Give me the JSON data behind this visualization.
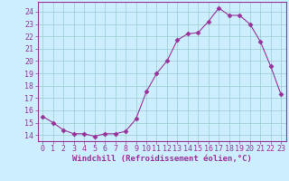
{
  "x": [
    0,
    1,
    2,
    3,
    4,
    5,
    6,
    7,
    8,
    9,
    10,
    11,
    12,
    13,
    14,
    15,
    16,
    17,
    18,
    19,
    20,
    21,
    22,
    23
  ],
  "y": [
    15.5,
    15.0,
    14.4,
    14.1,
    14.1,
    13.9,
    14.1,
    14.1,
    14.3,
    15.3,
    17.5,
    19.0,
    20.0,
    21.7,
    22.2,
    22.3,
    23.2,
    24.3,
    23.7,
    23.7,
    23.0,
    21.6,
    19.6,
    17.3
  ],
  "line_color": "#993399",
  "marker": "D",
  "marker_size": 2.5,
  "bg_color": "#cceeff",
  "grid_color": "#99cccc",
  "axis_color": "#993399",
  "spine_color": "#993399",
  "xlabel": "Windchill (Refroidissement éolien,°C)",
  "xlim": [
    -0.5,
    23.5
  ],
  "ylim": [
    13.5,
    24.8
  ],
  "yticks": [
    14,
    15,
    16,
    17,
    18,
    19,
    20,
    21,
    22,
    23,
    24
  ],
  "xticks": [
    0,
    1,
    2,
    3,
    4,
    5,
    6,
    7,
    8,
    9,
    10,
    11,
    12,
    13,
    14,
    15,
    16,
    17,
    18,
    19,
    20,
    21,
    22,
    23
  ],
  "label_fontsize": 6.5,
  "tick_fontsize": 6.0
}
